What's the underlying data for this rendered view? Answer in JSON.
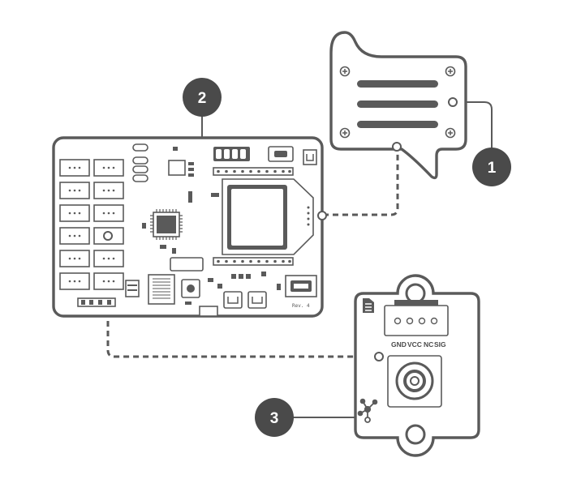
{
  "callouts": [
    {
      "number": "1",
      "target": "speaker"
    },
    {
      "number": "2",
      "target": "main-board"
    },
    {
      "number": "3",
      "target": "sensor-module"
    }
  ],
  "sensor_pins": [
    "GND",
    "VCC",
    "NC",
    "SIG"
  ],
  "board_revision": "Rev. 4",
  "colors": {
    "stroke": "#5a5a5a",
    "badge": "#4a4a4a",
    "background": "#ffffff"
  }
}
